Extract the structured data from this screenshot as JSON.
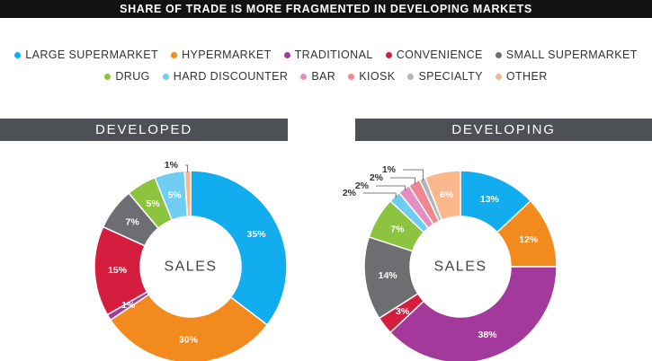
{
  "title": "SHARE OF TRADE IS MORE FRAGMENTED IN DEVELOPING MARKETS",
  "legend": [
    {
      "key": "large",
      "label": "LARGE SUPERMARKET",
      "color": "#12adef"
    },
    {
      "key": "hyper",
      "label": "HYPERMARKET",
      "color": "#f28a1e"
    },
    {
      "key": "trad",
      "label": "TRADITIONAL",
      "color": "#a2399b"
    },
    {
      "key": "conv",
      "label": "CONVENIENCE",
      "color": "#d51e3f"
    },
    {
      "key": "small",
      "label": "SMALL SUPERMARKET",
      "color": "#6d6e71"
    },
    {
      "key": "drug",
      "label": "DRUG",
      "color": "#8cc43f"
    },
    {
      "key": "hard",
      "label": "HARD DISCOUNTER",
      "color": "#6fcdf4"
    },
    {
      "key": "bar",
      "label": "BAR",
      "color": "#e38fc3"
    },
    {
      "key": "kiosk",
      "label": "KIOSK",
      "color": "#f0868f"
    },
    {
      "key": "spec",
      "label": "SPECIALTY",
      "color": "#b3b5b8"
    },
    {
      "key": "other",
      "label": "OTHER",
      "color": "#f8b88b"
    }
  ],
  "chart_data": [
    {
      "type": "pie",
      "title": "DEVELOPED",
      "center_label": "SALES",
      "slices": [
        {
          "key": "large",
          "value": 35,
          "label": "35%"
        },
        {
          "key": "hyper",
          "value": 30,
          "label": "30%"
        },
        {
          "key": "trad",
          "value": 1,
          "label": "1%"
        },
        {
          "key": "conv",
          "value": 15,
          "label": "15%"
        },
        {
          "key": "small",
          "value": 7,
          "label": "7%"
        },
        {
          "key": "drug",
          "value": 5,
          "label": "5%"
        },
        {
          "key": "hard",
          "value": 5,
          "label": "5%"
        },
        {
          "key": "other",
          "value": 1,
          "label": "1%"
        }
      ]
    },
    {
      "type": "pie",
      "title": "DEVELOPING",
      "center_label": "SALES",
      "slices": [
        {
          "key": "large",
          "value": 13,
          "label": "13%"
        },
        {
          "key": "hyper",
          "value": 12,
          "label": "12%"
        },
        {
          "key": "trad",
          "value": 38,
          "label": "38%"
        },
        {
          "key": "conv",
          "value": 3,
          "label": "3%"
        },
        {
          "key": "small",
          "value": 14,
          "label": "14%"
        },
        {
          "key": "drug",
          "value": 7,
          "label": "7%"
        },
        {
          "key": "hard",
          "value": 2,
          "label": "2%"
        },
        {
          "key": "bar",
          "value": 2,
          "label": "2%"
        },
        {
          "key": "kiosk",
          "value": 2,
          "label": "2%"
        },
        {
          "key": "spec",
          "value": 1,
          "label": "1%"
        },
        {
          "key": "other",
          "value": 6,
          "label": "6%"
        }
      ]
    }
  ]
}
